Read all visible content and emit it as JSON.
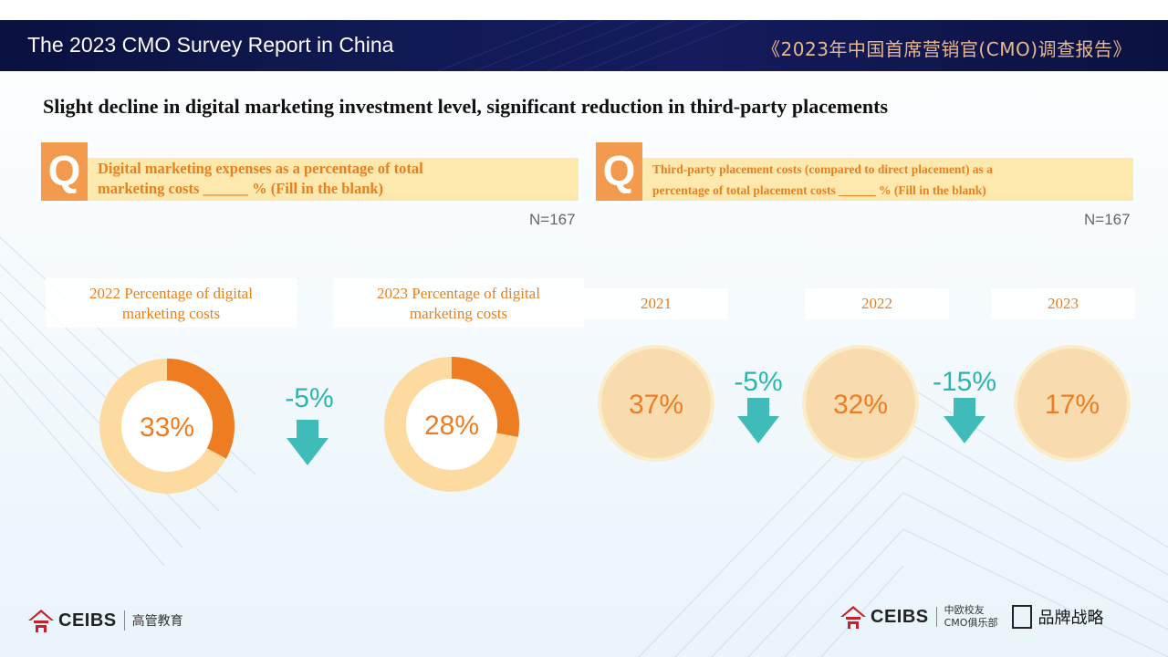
{
  "header": {
    "title_en": "The 2023 CMO Survey Report in China",
    "title_cn": "《2023年中国首席营销官(CMO)调查报告》"
  },
  "page_title": "Slight decline in digital marketing investment level, significant reduction in third-party placements",
  "q_badge": "Q",
  "question1": {
    "line1": "Digital marketing expenses as a percentage of total",
    "line2": "marketing costs ______ % (Fill in the blank)",
    "n_label": "N=167"
  },
  "question2": {
    "line1": "Third-party placement costs (compared to direct placement) as a",
    "line2": "percentage of total placement costs ______ % (Fill in the blank)",
    "n_label": "N=167"
  },
  "colors": {
    "orange": "#ee7d22",
    "light_orange": "#fddba0",
    "teal": "#2bb5b2",
    "circle_fill": "#f8dcb0",
    "circle_ring": "#fbecc9"
  },
  "chart_data": [
    {
      "type": "pie",
      "chart_style": "donut",
      "title": "Digital marketing expenses as a percentage of total marketing costs",
      "series": [
        {
          "name": "2022 Percentage of digital marketing costs",
          "value": 33,
          "label": "33%",
          "label_line1": "2022 Percentage of digital",
          "label_line2": "marketing costs"
        },
        {
          "name": "2023 Percentage of digital marketing costs",
          "value": 28,
          "label": "28%",
          "label_line1": "2023 Percentage of digital",
          "label_line2": "marketing costs"
        }
      ],
      "change": {
        "value": -5,
        "label": "-5%"
      }
    },
    {
      "type": "bar",
      "chart_style": "bubbles",
      "title": "Third-party placement costs as a percentage of total placement costs",
      "categories": [
        "2021",
        "2022",
        "2023"
      ],
      "values": [
        37,
        32,
        17
      ],
      "labels": [
        "37%",
        "32%",
        "17%"
      ],
      "changes": [
        {
          "value": -5,
          "label": "-5%"
        },
        {
          "value": -15,
          "label": "-15%"
        }
      ]
    }
  ],
  "footer": {
    "left_brand": "CEIBS",
    "left_sub": "高管教育",
    "right_brand": "CEIBS",
    "right_sub_line1": "中欧校友",
    "right_sub_line2": "CMO俱乐部",
    "right_brand2": "品牌战略"
  }
}
